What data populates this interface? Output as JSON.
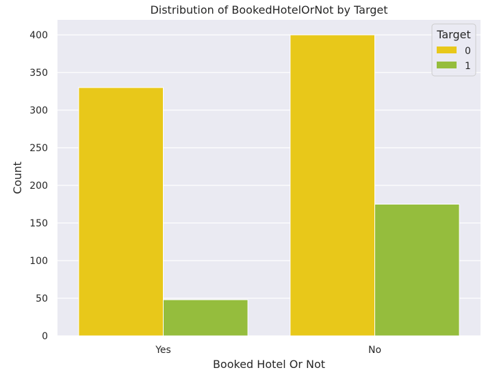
{
  "chart_data": {
    "type": "bar",
    "title": "Distribution of BookedHotelOrNot by Target",
    "xlabel": "Booked Hotel Or Not",
    "ylabel": "Count",
    "categories": [
      "Yes",
      "No"
    ],
    "series": [
      {
        "name": "0",
        "values": [
          330,
          400
        ],
        "color": "#E8C81A"
      },
      {
        "name": "1",
        "values": [
          48,
          175
        ],
        "color": "#95BD3D"
      }
    ],
    "ylim": [
      0,
      420
    ],
    "yticks": [
      0,
      50,
      100,
      150,
      200,
      250,
      300,
      350,
      400
    ],
    "grid": true,
    "legend": {
      "title": "Target",
      "position": "top-right"
    }
  },
  "style": {
    "plot_background": "#EAEAF2",
    "grid_color": "#FFFFFF",
    "text_color": "#262626"
  }
}
